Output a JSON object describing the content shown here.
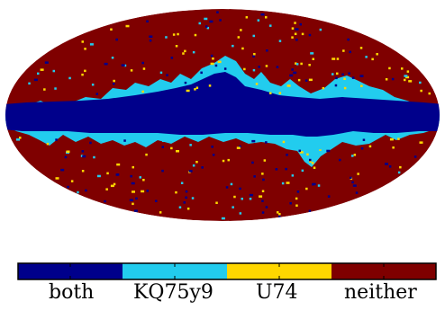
{
  "figure": {
    "projection": "mollweide",
    "categories": [
      {
        "key": "both",
        "label": "both",
        "color": "#00008b"
      },
      {
        "key": "kq75y9",
        "label": "KQ75y9",
        "color": "#22ccee"
      },
      {
        "key": "u74",
        "label": "U74",
        "color": "#ffd700"
      },
      {
        "key": "neither",
        "label": "neither",
        "color": "#7f0000"
      }
    ],
    "background_color": "#ffffff"
  }
}
